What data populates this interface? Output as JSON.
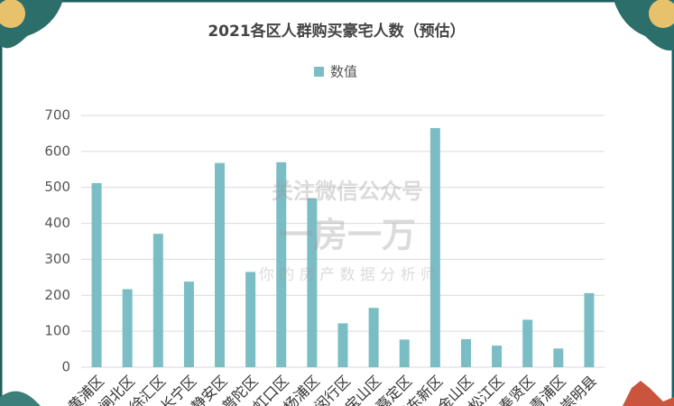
{
  "chart_data": {
    "type": "bar",
    "title": "2021各区人群购买豪宅人数（预估）",
    "categories": [
      "黄浦区",
      "闸北区",
      "徐汇区",
      "长宁区",
      "静安区",
      "普陀区",
      "虹口区",
      "杨浦区",
      "闵行区",
      "宝山区",
      "嘉定区",
      "浦东新区",
      "金山区",
      "松江区",
      "奉贤区",
      "青浦区",
      "崇明县"
    ],
    "series": [
      {
        "name": "数值",
        "color": "#7bbdc5",
        "values": [
          512,
          217,
          371,
          238,
          568,
          265,
          570,
          470,
          122,
          165,
          77,
          665,
          78,
          60,
          132,
          52,
          206
        ]
      }
    ],
    "ylim": [
      0,
      700
    ],
    "yticks": [
      0,
      100,
      200,
      300,
      400,
      500,
      600,
      700
    ],
    "grid": true,
    "legend": "top"
  },
  "watermark": {
    "line1": "关注微信公众号",
    "line2": "一房一万",
    "line3": "你 的 房 产 数 据 分 析 师"
  }
}
